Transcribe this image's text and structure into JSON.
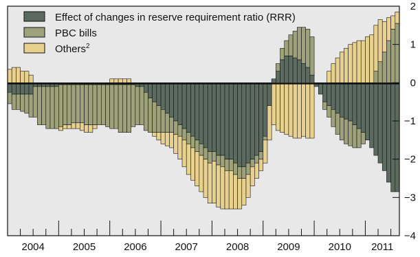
{
  "chart_data": {
    "type": "bar",
    "stacked": true,
    "title": "",
    "xlabel": "",
    "ylabel": "",
    "ylim": [
      -4,
      2
    ],
    "grid": false,
    "legend_position": "top-left",
    "background_color": "#e8e8e8",
    "year_labels": [
      "2004",
      "2005",
      "2006",
      "2007",
      "2008",
      "2009",
      "2010",
      "2011"
    ],
    "y_ticks": [
      "2",
      "1",
      "0",
      "−1",
      "−2",
      "−3",
      "−4"
    ],
    "y_tick_values": [
      2,
      1,
      0,
      -1,
      -2,
      -3,
      -4
    ],
    "months_per_year": 12,
    "start_year": 2004,
    "series": [
      {
        "name": "Effect of changes in reserve requirement ratio (RRR)",
        "color": "#5b6b60",
        "values": [
          -0.25,
          -0.3,
          -0.3,
          -0.3,
          -0.3,
          -0.3,
          -0.1,
          -0.1,
          -0.1,
          -0.1,
          -0.1,
          -0.1,
          -0.05,
          -0.05,
          -0.05,
          -0.05,
          -0.05,
          -0.05,
          -0.05,
          -0.05,
          -0.05,
          -0.05,
          -0.05,
          -0.05,
          -0.05,
          -0.05,
          -0.05,
          -0.05,
          -0.05,
          -0.05,
          -0.1,
          -0.1,
          -0.25,
          -0.4,
          -0.5,
          -0.6,
          -0.7,
          -0.8,
          -0.9,
          -1.0,
          -1.1,
          -1.2,
          -1.3,
          -1.4,
          -1.5,
          -1.6,
          -1.7,
          -1.8,
          -1.8,
          -1.9,
          -1.9,
          -2.0,
          -2.0,
          -2.1,
          -2.2,
          -2.2,
          -2.1,
          -2.0,
          -1.9,
          -1.8,
          -1.4,
          -0.6,
          0.1,
          0.3,
          0.6,
          0.7,
          0.7,
          0.65,
          0.6,
          0.5,
          0.4,
          0.2,
          -0.1,
          -0.3,
          -0.5,
          -0.6,
          -0.7,
          -0.8,
          -0.9,
          -0.95,
          -1.0,
          -1.1,
          -1.2,
          -1.3,
          -1.5,
          -1.7,
          -1.9,
          -2.1,
          -2.3,
          -2.6,
          -2.85,
          -2.85
        ]
      },
      {
        "name": "PBC bills",
        "color": "#9ea27b",
        "values": [
          -0.3,
          -0.4,
          -0.4,
          -0.45,
          -0.5,
          -0.6,
          -0.8,
          -1.0,
          -1.0,
          -1.1,
          -1.1,
          -1.1,
          -1.1,
          -1.05,
          -1.05,
          -1.0,
          -1.0,
          -1.0,
          -1.05,
          -1.05,
          -1.05,
          -1.05,
          -1.05,
          -1.1,
          -1.15,
          -1.15,
          -1.25,
          -1.25,
          -1.25,
          -1.1,
          -1.0,
          -1.0,
          -1.0,
          -0.9,
          -0.8,
          -0.7,
          -0.6,
          -0.5,
          -0.4,
          -0.35,
          -0.3,
          -0.3,
          -0.3,
          -0.3,
          -0.3,
          -0.3,
          -0.3,
          -0.3,
          -0.25,
          -0.25,
          -0.3,
          -0.3,
          -0.3,
          -0.3,
          -0.3,
          -0.3,
          -0.3,
          -0.2,
          -0.2,
          -0.2,
          -0.1,
          0.0,
          0.0,
          0.2,
          0.3,
          0.4,
          0.55,
          0.7,
          0.85,
          0.95,
          1.0,
          1.0,
          0.0,
          0.0,
          -0.2,
          -0.3,
          -0.45,
          -0.55,
          -0.6,
          -0.65,
          -0.65,
          -0.6,
          -0.5,
          -0.3,
          0.0,
          0.0,
          0.3,
          0.55,
          0.8,
          1.1,
          1.4,
          1.55
        ]
      },
      {
        "name": "Others",
        "sup": "2",
        "color": "#e8d08e",
        "values": [
          0.35,
          0.4,
          0.4,
          0.3,
          0.3,
          0.2,
          0.0,
          0.0,
          0.0,
          0.0,
          0.0,
          0.0,
          -0.1,
          -0.1,
          -0.1,
          -0.15,
          -0.15,
          -0.2,
          -0.2,
          -0.2,
          -0.1,
          0.0,
          0.0,
          0.0,
          0.1,
          0.1,
          0.1,
          0.1,
          0.1,
          0.0,
          0.0,
          0.0,
          0.0,
          0.0,
          -0.1,
          -0.2,
          -0.3,
          -0.35,
          -0.4,
          -0.5,
          -0.6,
          -0.7,
          -0.8,
          -0.85,
          -0.9,
          -0.95,
          -1.0,
          -1.05,
          -1.1,
          -1.1,
          -1.1,
          -1.0,
          -1.0,
          -0.9,
          -0.8,
          -0.7,
          -0.6,
          -0.5,
          -0.4,
          -0.3,
          -0.6,
          -0.9,
          -1.1,
          -1.25,
          -1.3,
          -1.35,
          -1.4,
          -1.45,
          -1.45,
          -1.4,
          -1.45,
          -1.45,
          0.0,
          0.0,
          0.0,
          0.3,
          0.5,
          0.65,
          0.8,
          0.9,
          1.0,
          1.05,
          1.1,
          1.1,
          1.2,
          1.25,
          1.2,
          1.1,
          0.8,
          0.6,
          0.35,
          0.3
        ]
      }
    ]
  }
}
